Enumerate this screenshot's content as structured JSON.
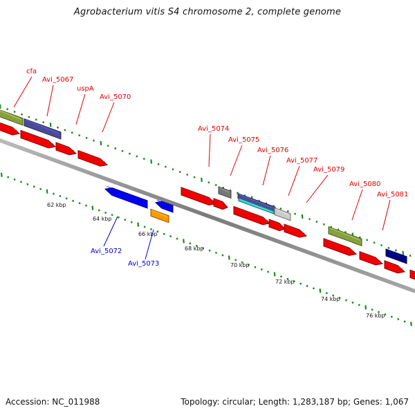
{
  "title": "Agrobacterium vitis S4 chromosome 2, complete genome",
  "footer": {
    "accession": "Accession: NC_011988",
    "summary": "Topology: circular; Length: 1,283,187 bp; Genes: 1,067"
  },
  "colors": {
    "background": "#ffffff",
    "backbone": "#888888",
    "tick": "#1a8a1a",
    "label_forward": "#dd0000",
    "label_reverse": "#0000cc",
    "cds": "#ee0000",
    "olive": "#88a040",
    "slate": "#4a4a99",
    "navy": "#000080",
    "blue": "#0000ee",
    "orange": "#ff9900",
    "gray": "#777777",
    "lightgray": "#cccccc",
    "teal": "#33cccc"
  },
  "scale": {
    "unit": "kbp",
    "labels": [
      "62 kbp",
      "64 kbp",
      "66 kbp",
      "68 kbp",
      "70 kbp",
      "72 kbp",
      "74 kbp",
      "76 kbp"
    ]
  },
  "genes_top": [
    {
      "label": "cfa",
      "color": "olive",
      "strand": "forward",
      "kind": "feature"
    },
    {
      "label": "Avi_5067",
      "color": "slate",
      "strand": "forward",
      "kind": "feature"
    },
    {
      "label": "uspA",
      "color": "cds",
      "strand": "forward",
      "kind": "cds"
    },
    {
      "label": "Avi_5070",
      "color": "cds",
      "strand": "forward",
      "kind": "cds"
    },
    {
      "label": "Avi_5074",
      "color": "cds",
      "strand": "forward",
      "kind": "cds"
    },
    {
      "label": "Avi_5075",
      "color": "gray",
      "strand": "forward",
      "kind": "feature"
    },
    {
      "label": "Avi_5076",
      "color": "slate",
      "strand": "forward",
      "kind": "feature"
    },
    {
      "label": "Avi_5077",
      "color": "lightgray",
      "strand": "forward",
      "kind": "feature"
    },
    {
      "label": "Avi_5079",
      "color": "cds",
      "strand": "forward",
      "kind": "cds"
    },
    {
      "label": "Avi_5080",
      "color": "olive",
      "strand": "forward",
      "kind": "feature"
    },
    {
      "label": "Avi_5081",
      "color": "navy",
      "strand": "forward",
      "kind": "feature"
    }
  ],
  "genes_bottom": [
    {
      "label": "Avi_5072",
      "color": "blue",
      "strand": "reverse",
      "kind": "cds"
    },
    {
      "label": "Avi_5073",
      "color": "blue",
      "strand": "reverse",
      "kind": "cds"
    },
    {
      "label": "",
      "color": "orange",
      "strand": "reverse",
      "kind": "feature"
    }
  ]
}
